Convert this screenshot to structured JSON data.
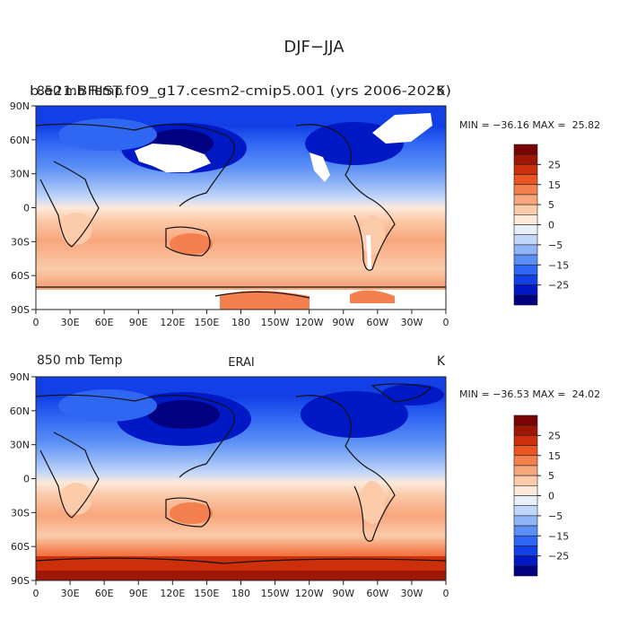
{
  "figure_title": "DJF−JJA",
  "chart_data": [
    {
      "type": "heatmap",
      "title_left": "b.e21.BHIST.f09_g17.cesm2-cmip5.001 (yrs 2006-2025)",
      "title_overlap": "850 mb Temp",
      "title_right": "K",
      "stats": "MIN = −36.16 MAX =  25.82",
      "x_ticks": [
        "0",
        "30E",
        "60E",
        "90E",
        "120E",
        "150E",
        "180",
        "150W",
        "120W",
        "90W",
        "60W",
        "30W",
        "0"
      ],
      "y_ticks": [
        "90N",
        "60N",
        "30N",
        "0",
        "30S",
        "60S",
        "90S"
      ],
      "xlim": [
        0,
        360
      ],
      "ylim": [
        -90,
        90
      ],
      "missing_regions": [
        "Siberia/Mongolia",
        "Greenland",
        "Rocky Mountains",
        "Andes",
        "Antarctic interior"
      ],
      "colorbar": {
        "tick_labels": [
          "25",
          "15",
          "5",
          "0",
          "−5",
          "−15",
          "−25"
        ],
        "levels": [
          -30,
          -25,
          -20,
          -15,
          -10,
          -5,
          -2,
          0,
          2,
          5,
          10,
          15,
          20,
          25,
          30
        ],
        "colors": [
          "#000080",
          "#0019c4",
          "#1240e6",
          "#2f66f2",
          "#5b8ff5",
          "#8fb4f7",
          "#c2d7fa",
          "#e8f0fc",
          "#fde9da",
          "#fbcbaa",
          "#f8a67c",
          "#f3804e",
          "#eb5423",
          "#cc2f0c",
          "#9e1706",
          "#7a0303"
        ]
      }
    },
    {
      "type": "heatmap",
      "title_left": "850 mb Temp",
      "title_center": "ERAI",
      "title_right": "K",
      "stats": "MIN = −36.53 MAX =  24.02",
      "x_ticks": [
        "0",
        "30E",
        "60E",
        "90E",
        "120E",
        "150E",
        "180",
        "150W",
        "120W",
        "90W",
        "60W",
        "30W",
        "0"
      ],
      "y_ticks": [
        "90N",
        "60N",
        "30N",
        "0",
        "30S",
        "60S",
        "90S"
      ],
      "xlim": [
        0,
        360
      ],
      "ylim": [
        -90,
        90
      ],
      "colorbar": {
        "tick_labels": [
          "25",
          "15",
          "5",
          "0",
          "−5",
          "−15",
          "−25"
        ],
        "levels": [
          -30,
          -25,
          -20,
          -15,
          -10,
          -5,
          -2,
          0,
          2,
          5,
          10,
          15,
          20,
          25,
          30
        ],
        "colors": [
          "#000080",
          "#0019c4",
          "#1240e6",
          "#2f66f2",
          "#5b8ff5",
          "#8fb4f7",
          "#c2d7fa",
          "#e8f0fc",
          "#fde9da",
          "#fbcbaa",
          "#f8a67c",
          "#f3804e",
          "#eb5423",
          "#cc2f0c",
          "#9e1706",
          "#7a0303"
        ]
      }
    }
  ]
}
